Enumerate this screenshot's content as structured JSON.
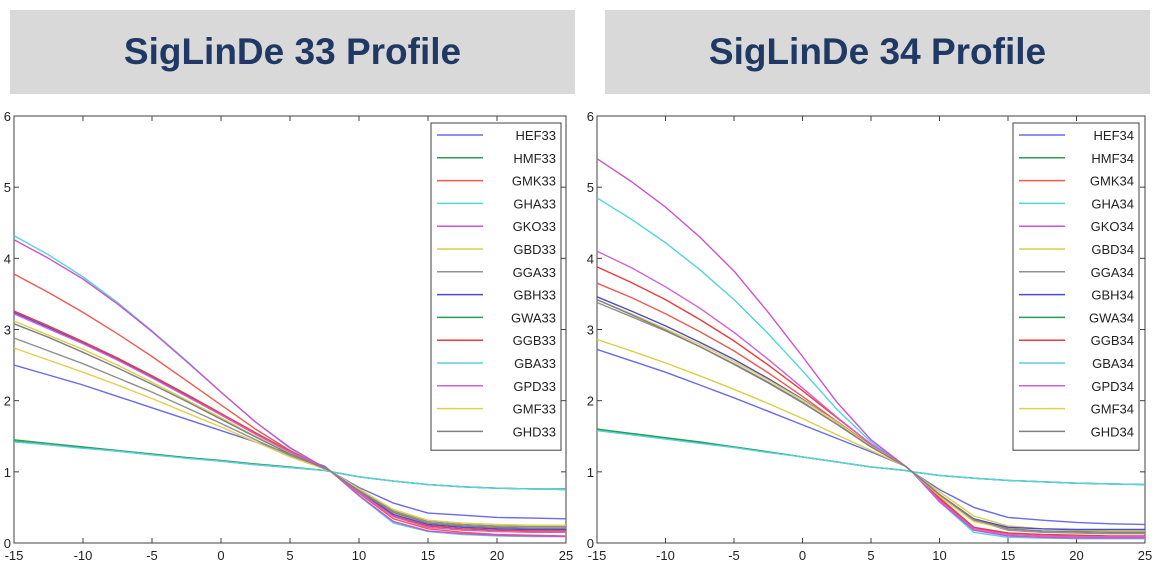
{
  "chart_data": [
    {
      "type": "line",
      "title": "SigLinDe 33 Profile",
      "x": [
        -15,
        -12.5,
        -10,
        -7.5,
        -5,
        -2.5,
        0,
        2.5,
        5,
        7.5,
        8,
        10,
        12.5,
        15,
        17.5,
        20,
        22.5,
        25
      ],
      "xlim": [
        -15,
        25
      ],
      "ylim": [
        0,
        6
      ],
      "xticks": [
        "-15",
        "-10",
        "-5",
        "0",
        "5",
        "10",
        "15",
        "20",
        "25"
      ],
      "yticks": [
        "0",
        "1",
        "2",
        "3",
        "4",
        "5",
        "6"
      ],
      "legend_position": "top-right",
      "grid": false,
      "series": [
        {
          "name": "HEF33",
          "color": "#6a6aea",
          "values": [
            2.5,
            2.36,
            2.22,
            2.06,
            1.9,
            1.74,
            1.58,
            1.42,
            1.25,
            1.08,
            1.0,
            0.78,
            0.56,
            0.42,
            0.39,
            0.36,
            0.35,
            0.34
          ]
        },
        {
          "name": "HMF33",
          "color": "#2e9e55",
          "values": [
            1.45,
            1.4,
            1.35,
            1.3,
            1.25,
            1.2,
            1.16,
            1.11,
            1.07,
            1.02,
            1.0,
            0.93,
            0.87,
            0.82,
            0.79,
            0.77,
            0.76,
            0.76
          ]
        },
        {
          "name": "GMK33",
          "color": "#ee5a52",
          "values": [
            3.78,
            3.52,
            3.24,
            2.94,
            2.62,
            2.28,
            1.94,
            1.6,
            1.3,
            1.06,
            1.0,
            0.7,
            0.34,
            0.2,
            0.15,
            0.12,
            0.11,
            0.1
          ]
        },
        {
          "name": "GHA33",
          "color": "#4fd6d6",
          "values": [
            4.32,
            4.05,
            3.74,
            3.38,
            2.98,
            2.56,
            2.12,
            1.7,
            1.33,
            1.06,
            1.0,
            0.66,
            0.28,
            0.16,
            0.12,
            0.1,
            0.09,
            0.09
          ]
        },
        {
          "name": "GKO33",
          "color": "#d050d0",
          "values": [
            4.26,
            4.0,
            3.71,
            3.36,
            2.97,
            2.55,
            2.12,
            1.7,
            1.34,
            1.06,
            1.0,
            0.67,
            0.3,
            0.17,
            0.13,
            0.11,
            0.1,
            0.09
          ]
        },
        {
          "name": "GBD33",
          "color": "#d8cf4a",
          "values": [
            3.12,
            2.92,
            2.72,
            2.5,
            2.26,
            2.01,
            1.76,
            1.5,
            1.26,
            1.05,
            1.0,
            0.74,
            0.42,
            0.27,
            0.23,
            0.21,
            0.2,
            0.2
          ]
        },
        {
          "name": "GGA33",
          "color": "#909090",
          "values": [
            2.88,
            2.7,
            2.52,
            2.32,
            2.12,
            1.9,
            1.68,
            1.45,
            1.23,
            1.04,
            1.0,
            0.75,
            0.45,
            0.3,
            0.26,
            0.24,
            0.23,
            0.23
          ]
        },
        {
          "name": "GBH33",
          "color": "#4a4ad6",
          "values": [
            3.24,
            3.03,
            2.81,
            2.58,
            2.33,
            2.07,
            1.8,
            1.53,
            1.28,
            1.05,
            1.0,
            0.72,
            0.4,
            0.26,
            0.22,
            0.2,
            0.19,
            0.19
          ]
        },
        {
          "name": "GWA33",
          "color": "#20a050",
          "values": [
            1.43,
            1.38,
            1.34,
            1.29,
            1.24,
            1.2,
            1.15,
            1.1,
            1.06,
            1.02,
            1.0,
            0.93,
            0.87,
            0.82,
            0.79,
            0.77,
            0.76,
            0.75
          ]
        },
        {
          "name": "GGB33",
          "color": "#ee3a3a",
          "values": [
            3.26,
            3.05,
            2.83,
            2.6,
            2.35,
            2.09,
            1.82,
            1.55,
            1.29,
            1.05,
            1.0,
            0.71,
            0.38,
            0.24,
            0.2,
            0.18,
            0.17,
            0.17
          ]
        },
        {
          "name": "GBA33",
          "color": "#5ad0e0",
          "values": [
            1.42,
            1.38,
            1.33,
            1.29,
            1.24,
            1.19,
            1.15,
            1.1,
            1.06,
            1.02,
            1.0,
            0.93,
            0.87,
            0.82,
            0.79,
            0.77,
            0.76,
            0.75
          ]
        },
        {
          "name": "GPD33",
          "color": "#d060d8",
          "values": [
            3.22,
            3.01,
            2.8,
            2.57,
            2.32,
            2.06,
            1.8,
            1.53,
            1.28,
            1.05,
            1.0,
            0.71,
            0.37,
            0.22,
            0.18,
            0.16,
            0.15,
            0.15
          ]
        },
        {
          "name": "GMF33",
          "color": "#e0d050",
          "values": [
            2.74,
            2.57,
            2.4,
            2.22,
            2.03,
            1.83,
            1.63,
            1.42,
            1.21,
            1.04,
            1.0,
            0.76,
            0.47,
            0.32,
            0.28,
            0.26,
            0.25,
            0.25
          ]
        },
        {
          "name": "GHD33",
          "color": "#808080",
          "values": [
            3.08,
            2.89,
            2.68,
            2.46,
            2.23,
            1.99,
            1.74,
            1.49,
            1.25,
            1.05,
            1.0,
            0.73,
            0.43,
            0.28,
            0.24,
            0.22,
            0.21,
            0.21
          ]
        }
      ]
    },
    {
      "type": "line",
      "title": "SigLinDe 34 Profile",
      "x": [
        -15,
        -12.5,
        -10,
        -7.5,
        -5,
        -2.5,
        0,
        2.5,
        5,
        7.5,
        8,
        10,
        12.5,
        15,
        17.5,
        20,
        22.5,
        25
      ],
      "xlim": [
        -15,
        25
      ],
      "ylim": [
        0,
        6
      ],
      "xticks": [
        "-15",
        "-10",
        "-5",
        "0",
        "5",
        "10",
        "15",
        "20",
        "25"
      ],
      "yticks": [
        "0",
        "1",
        "2",
        "3",
        "4",
        "5",
        "6"
      ],
      "legend_position": "top-right",
      "grid": false,
      "series": [
        {
          "name": "HEF34",
          "color": "#6a6aea",
          "values": [
            2.72,
            2.56,
            2.4,
            2.22,
            2.04,
            1.85,
            1.66,
            1.47,
            1.28,
            1.08,
            1.0,
            0.75,
            0.5,
            0.36,
            0.32,
            0.29,
            0.27,
            0.26
          ]
        },
        {
          "name": "HMF34",
          "color": "#2e9e55",
          "values": [
            1.58,
            1.53,
            1.47,
            1.41,
            1.35,
            1.28,
            1.21,
            1.14,
            1.07,
            1.02,
            1.0,
            0.95,
            0.91,
            0.88,
            0.86,
            0.84,
            0.83,
            0.82
          ]
        },
        {
          "name": "GMK34",
          "color": "#ee5a52",
          "values": [
            3.65,
            3.45,
            3.22,
            2.97,
            2.7,
            2.39,
            2.06,
            1.71,
            1.37,
            1.08,
            1.0,
            0.64,
            0.22,
            0.12,
            0.1,
            0.09,
            0.08,
            0.08
          ]
        },
        {
          "name": "GHA34",
          "color": "#4fd6d6",
          "values": [
            4.85,
            4.55,
            4.22,
            3.84,
            3.42,
            2.94,
            2.42,
            1.88,
            1.42,
            1.08,
            1.0,
            0.58,
            0.15,
            0.08,
            0.07,
            0.06,
            0.06,
            0.06
          ]
        },
        {
          "name": "GKO34",
          "color": "#d050d0",
          "values": [
            5.4,
            5.08,
            4.72,
            4.3,
            3.82,
            3.24,
            2.62,
            1.98,
            1.45,
            1.08,
            1.0,
            0.58,
            0.18,
            0.1,
            0.08,
            0.07,
            0.07,
            0.07
          ]
        },
        {
          "name": "GBD34",
          "color": "#d8cf4a",
          "values": [
            2.86,
            2.7,
            2.53,
            2.35,
            2.16,
            1.96,
            1.75,
            1.52,
            1.3,
            1.08,
            1.0,
            0.72,
            0.38,
            0.24,
            0.2,
            0.18,
            0.17,
            0.17
          ]
        },
        {
          "name": "GGA34",
          "color": "#909090",
          "values": [
            3.38,
            3.18,
            2.98,
            2.76,
            2.52,
            2.26,
            1.98,
            1.67,
            1.35,
            1.08,
            1.0,
            0.68,
            0.32,
            0.18,
            0.15,
            0.14,
            0.13,
            0.13
          ]
        },
        {
          "name": "GBH34",
          "color": "#4a4ad6",
          "values": [
            3.46,
            3.26,
            3.05,
            2.82,
            2.58,
            2.31,
            2.02,
            1.7,
            1.36,
            1.08,
            1.0,
            0.68,
            0.34,
            0.22,
            0.2,
            0.19,
            0.19,
            0.19
          ]
        },
        {
          "name": "GWA34",
          "color": "#20a050",
          "values": [
            1.6,
            1.54,
            1.48,
            1.42,
            1.35,
            1.28,
            1.21,
            1.14,
            1.07,
            1.02,
            1.0,
            0.95,
            0.91,
            0.88,
            0.86,
            0.84,
            0.83,
            0.82
          ]
        },
        {
          "name": "GGB34",
          "color": "#ee3a3a",
          "values": [
            3.88,
            3.66,
            3.42,
            3.14,
            2.84,
            2.5,
            2.14,
            1.76,
            1.39,
            1.08,
            1.0,
            0.62,
            0.22,
            0.14,
            0.12,
            0.11,
            0.1,
            0.1
          ]
        },
        {
          "name": "GBA34",
          "color": "#5ad0e0",
          "values": [
            1.58,
            1.52,
            1.46,
            1.4,
            1.34,
            1.27,
            1.21,
            1.14,
            1.07,
            1.02,
            1.0,
            0.95,
            0.91,
            0.88,
            0.86,
            0.84,
            0.83,
            0.82
          ]
        },
        {
          "name": "GPD34",
          "color": "#d060d8",
          "values": [
            4.1,
            3.87,
            3.6,
            3.3,
            2.96,
            2.58,
            2.18,
            1.77,
            1.39,
            1.08,
            1.0,
            0.6,
            0.2,
            0.12,
            0.1,
            0.09,
            0.09,
            0.09
          ]
        },
        {
          "name": "GMF34",
          "color": "#e0d050",
          "values": [
            3.42,
            3.22,
            3.01,
            2.79,
            2.55,
            2.29,
            2.01,
            1.7,
            1.36,
            1.08,
            1.0,
            0.66,
            0.3,
            0.2,
            0.17,
            0.16,
            0.15,
            0.15
          ]
        },
        {
          "name": "GHD34",
          "color": "#808080",
          "values": [
            3.42,
            3.21,
            2.99,
            2.76,
            2.51,
            2.25,
            1.97,
            1.67,
            1.35,
            1.08,
            1.0,
            0.68,
            0.33,
            0.2,
            0.17,
            0.16,
            0.15,
            0.15
          ]
        }
      ]
    }
  ]
}
